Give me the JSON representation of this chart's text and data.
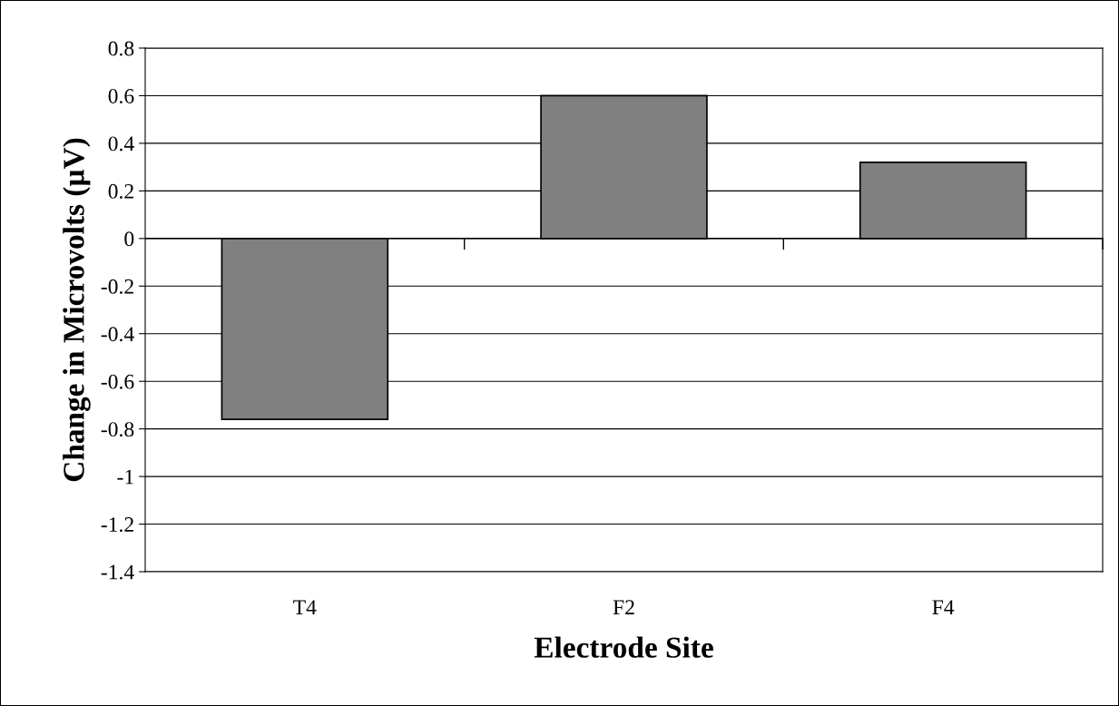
{
  "chart_data": {
    "type": "bar",
    "xlabel": "Electrode Site",
    "ylabel": "Change in Microvolts (µV)",
    "categories": [
      "T4",
      "F2",
      "F4"
    ],
    "values": [
      -0.76,
      0.6,
      0.32
    ],
    "color": "#808080",
    "ylim": [
      -1.4,
      0.8
    ],
    "yticks": [
      {
        "value": -1.4,
        "label": "-1.4"
      },
      {
        "value": -1.2,
        "label": "-1.2"
      },
      {
        "value": -1,
        "label": "-1"
      },
      {
        "value": -0.8,
        "label": "-0.8"
      },
      {
        "value": -0.6,
        "label": "-0.6"
      },
      {
        "value": -0.4,
        "label": "-0.4"
      },
      {
        "value": -0.2,
        "label": "-0.2"
      },
      0,
      0.2,
      0.4,
      0.6,
      0.8
    ],
    "grid": "y",
    "legend": false
  }
}
